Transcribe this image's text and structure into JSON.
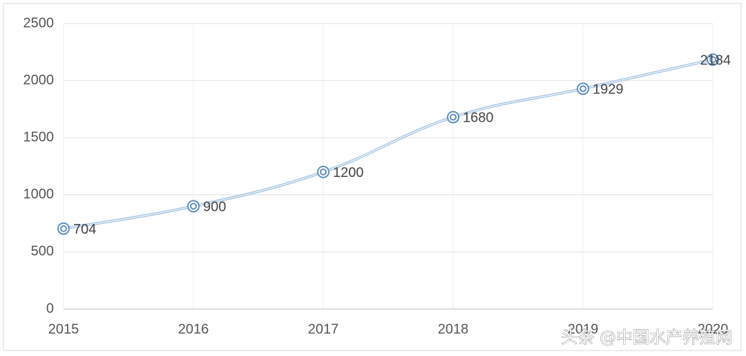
{
  "chart_data": {
    "type": "line",
    "categories": [
      "2015",
      "2016",
      "2017",
      "2018",
      "2019",
      "2020"
    ],
    "series": [
      {
        "values": [
          704,
          900,
          1200,
          1680,
          1929,
          2184
        ],
        "color": "#a9c6e2",
        "marker_color": "#5f8fbd"
      }
    ],
    "ylim": [
      0,
      2500
    ],
    "yticks": [
      0,
      500,
      1000,
      1500,
      2000,
      2500
    ],
    "grid": true,
    "watermark": "头条 @中国水产养殖网"
  }
}
